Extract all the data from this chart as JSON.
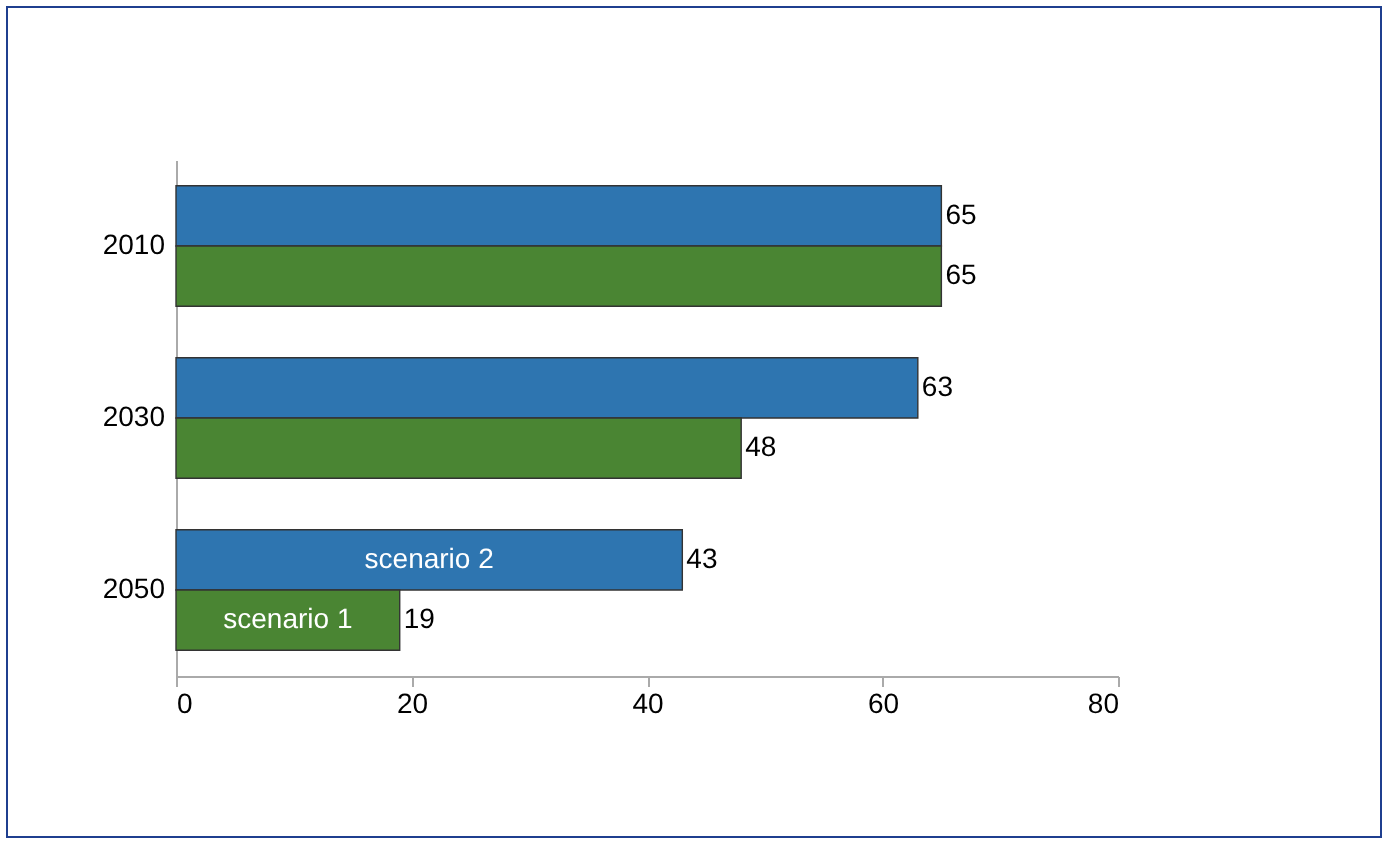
{
  "chart_data": {
    "type": "bar",
    "orientation": "horizontal",
    "categories": [
      "2010",
      "2030",
      "2050"
    ],
    "series": [
      {
        "name": "scenario 2",
        "color": "#2e75b0",
        "values": [
          65,
          63,
          43
        ]
      },
      {
        "name": "scenario 1",
        "color": "#4a8533",
        "values": [
          65,
          48,
          19
        ]
      }
    ],
    "xlim": [
      0,
      80
    ],
    "xticks": [
      0,
      20,
      40,
      60,
      80
    ],
    "data_labels": true
  }
}
